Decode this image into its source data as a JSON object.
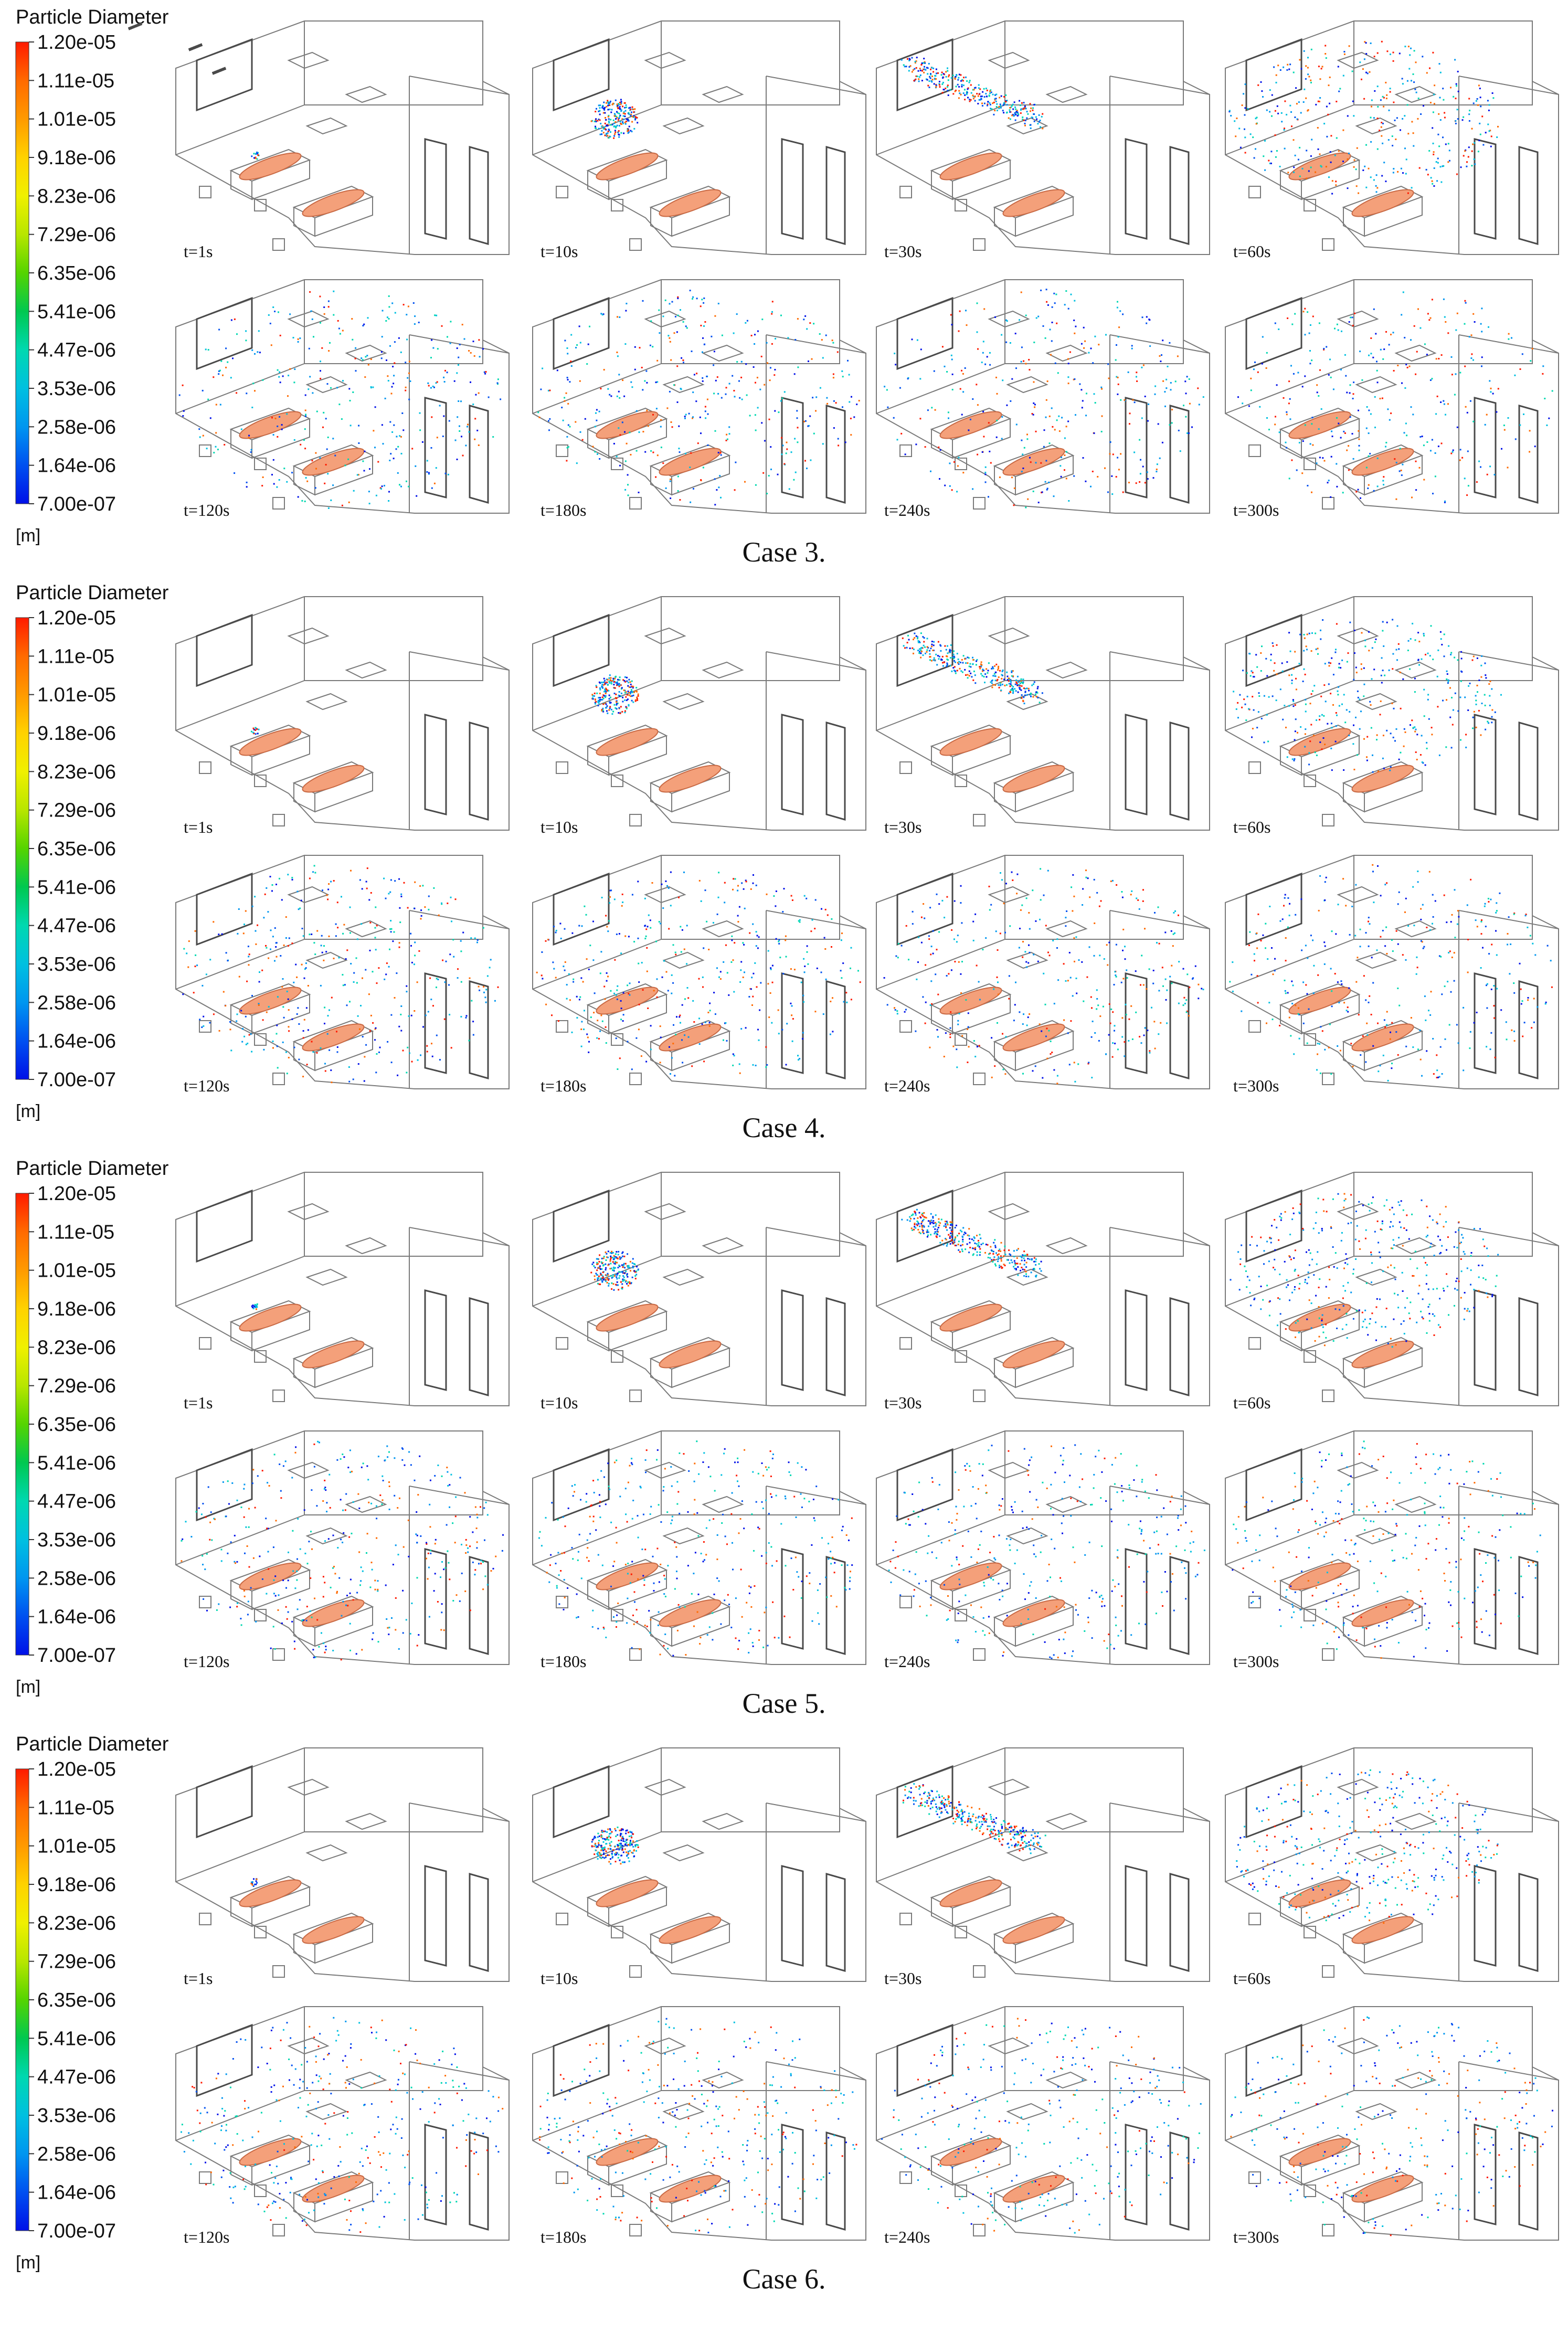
{
  "legend": {
    "title": "Particle Diameter",
    "unit": "[m]",
    "ticks": [
      "1.20e-05",
      "1.11e-05",
      "1.01e-05",
      "9.18e-06",
      "8.23e-06",
      "7.29e-06",
      "6.35e-06",
      "5.41e-06",
      "4.47e-06",
      "3.53e-06",
      "2.58e-06",
      "1.64e-06",
      "7.00e-07"
    ],
    "colors": [
      "#ff1a00",
      "#ff6a00",
      "#ff9a00",
      "#ffd200",
      "#f0f000",
      "#b8e600",
      "#55d400",
      "#00c850",
      "#00d8b0",
      "#00c0e0",
      "#0096f0",
      "#0050f0",
      "#0010e8"
    ]
  },
  "panel_times": [
    "t=1s",
    "t=10s",
    "t=30s",
    "t=60s",
    "t=120s",
    "t=180s",
    "t=240s",
    "t=300s"
  ],
  "cases": [
    {
      "caption": "Case 3.",
      "panels": [
        {
          "cloud": "small",
          "cloud_at": "near-head",
          "spread": 0.0
        },
        {
          "cloud": "compact",
          "cloud_at": "mid-air",
          "spread": 0.05
        },
        {
          "cloud": "plume",
          "cloud_at": "toward-window",
          "spread": 0.2
        },
        {
          "cloud": "diffuse",
          "cloud_at": "window-upper",
          "spread": 0.45
        },
        {
          "cloud": "scattered",
          "cloud_at": "whole-room",
          "spread": 0.6
        },
        {
          "cloud": "scattered",
          "cloud_at": "whole-room",
          "spread": 0.65
        },
        {
          "cloud": "scattered",
          "cloud_at": "whole-room",
          "spread": 0.55
        },
        {
          "cloud": "scattered",
          "cloud_at": "whole-room",
          "spread": 0.45
        }
      ]
    },
    {
      "caption": "Case 4.",
      "panels": [
        {
          "cloud": "small",
          "cloud_at": "near-head",
          "spread": 0.0
        },
        {
          "cloud": "compact",
          "cloud_at": "mid-air",
          "spread": 0.06
        },
        {
          "cloud": "plume",
          "cloud_at": "downward",
          "spread": 0.2
        },
        {
          "cloud": "diffuse",
          "cloud_at": "over-beds",
          "spread": 0.45
        },
        {
          "cloud": "scattered",
          "cloud_at": "whole-room",
          "spread": 0.7
        },
        {
          "cloud": "scattered",
          "cloud_at": "whole-room",
          "spread": 0.7
        },
        {
          "cloud": "scattered",
          "cloud_at": "whole-room",
          "spread": 0.6
        },
        {
          "cloud": "scattered",
          "cloud_at": "whole-room",
          "spread": 0.5
        }
      ]
    },
    {
      "caption": "Case 5.",
      "panels": [
        {
          "cloud": "small",
          "cloud_at": "near-head",
          "spread": 0.0
        },
        {
          "cloud": "compact",
          "cloud_at": "mid-air",
          "spread": 0.05
        },
        {
          "cloud": "plume",
          "cloud_at": "toward-vent",
          "spread": 0.15
        },
        {
          "cloud": "diffuse",
          "cloud_at": "upper-right",
          "spread": 0.45
        },
        {
          "cloud": "scattered",
          "cloud_at": "whole-room",
          "spread": 0.65
        },
        {
          "cloud": "scattered",
          "cloud_at": "whole-room",
          "spread": 0.65
        },
        {
          "cloud": "scattered",
          "cloud_at": "whole-room",
          "spread": 0.55
        },
        {
          "cloud": "scattered",
          "cloud_at": "whole-room",
          "spread": 0.45
        }
      ]
    },
    {
      "caption": "Case 6.",
      "panels": [
        {
          "cloud": "small",
          "cloud_at": "near-head",
          "spread": 0.0
        },
        {
          "cloud": "compact",
          "cloud_at": "mid-air",
          "spread": 0.05
        },
        {
          "cloud": "plume",
          "cloud_at": "toward-window",
          "spread": 0.2
        },
        {
          "cloud": "diffuse",
          "cloud_at": "window-upper",
          "spread": 0.45
        },
        {
          "cloud": "scattered",
          "cloud_at": "whole-room",
          "spread": 0.6
        },
        {
          "cloud": "scattered",
          "cloud_at": "whole-room",
          "spread": 0.6
        },
        {
          "cloud": "scattered",
          "cloud_at": "whole-room",
          "spread": 0.5
        },
        {
          "cloud": "scattered",
          "cloud_at": "whole-room",
          "spread": 0.45
        }
      ]
    }
  ],
  "colors": {
    "room_line": "#7a7a7a",
    "dark_line": "#4a4a4a",
    "body": "#f4a07a",
    "body_edge": "#c96a45",
    "caption": "#111111"
  }
}
